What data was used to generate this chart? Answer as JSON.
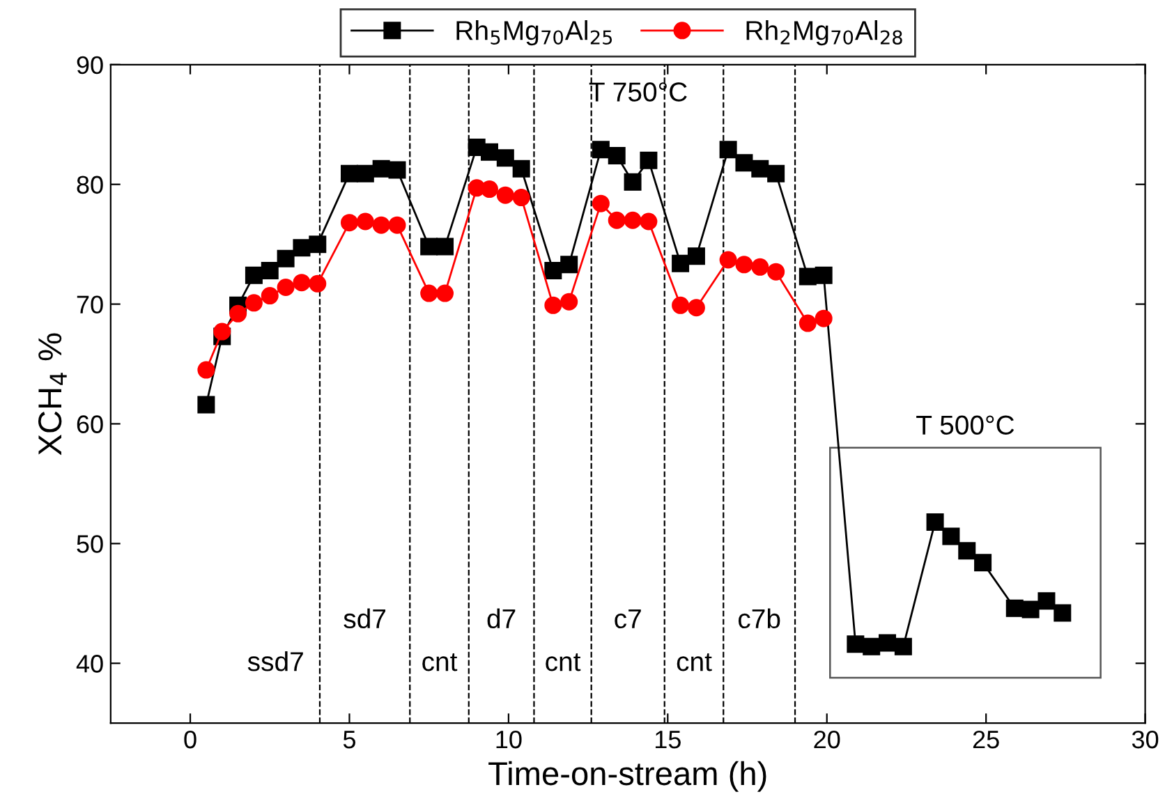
{
  "chart_data": {
    "type": "line",
    "xlabel": "Time-on-stream (h)",
    "ylabel": "XCH$_{4}$ %",
    "xlim": [
      -2.5,
      30
    ],
    "xticks": [
      0,
      5,
      10,
      15,
      20,
      25,
      30
    ],
    "ylim": [
      35,
      90
    ],
    "yticks": [
      40,
      50,
      60,
      70,
      80,
      90
    ],
    "grid": false,
    "legend": "top",
    "line_style": "solid",
    "series": [
      {
        "name": "Rh$_{5}$Mg$_{70}$Al$_{25}$",
        "color": "#000000",
        "marker": "square",
        "x": [
          0.5,
          1,
          1.5,
          2,
          2.5,
          3,
          3.5,
          4,
          5,
          5.5,
          6,
          6.5,
          7.5,
          8,
          9,
          9.4,
          9.9,
          10.4,
          11.4,
          11.9,
          12.9,
          13.4,
          13.9,
          14.4,
          15.4,
          15.9,
          16.9,
          17.4,
          17.9,
          18.4,
          19.4,
          19.9,
          20.9,
          21.4,
          21.9,
          22.4,
          23.4,
          23.9,
          24.4,
          24.9,
          25.9,
          26.4,
          26.9,
          27.4
        ],
        "values": [
          61.6,
          67.3,
          69.9,
          72.4,
          72.8,
          73.8,
          74.7,
          75.0,
          80.9,
          80.9,
          81.3,
          81.2,
          74.8,
          74.8,
          83.1,
          82.7,
          82.2,
          81.3,
          72.8,
          73.3,
          82.9,
          82.4,
          80.2,
          82.0,
          73.4,
          74.0,
          82.9,
          81.8,
          81.3,
          80.9,
          72.3,
          72.4,
          41.6,
          41.4,
          41.7,
          41.4,
          51.8,
          50.6,
          49.4,
          48.4,
          44.6,
          44.5,
          45.2,
          44.2
        ]
      },
      {
        "name": "Rh$_{2}$Mg$_{70}$Al$_{28}$",
        "color": "#ff0000",
        "marker": "circle",
        "x": [
          0.5,
          1,
          1.5,
          2,
          2.5,
          3,
          3.5,
          4,
          5,
          5.5,
          6,
          6.5,
          7.5,
          8,
          9,
          9.4,
          9.9,
          10.4,
          11.4,
          11.9,
          12.9,
          13.4,
          13.9,
          14.4,
          15.4,
          15.9,
          16.9,
          17.4,
          17.9,
          18.4,
          19.4,
          19.9
        ],
        "values": [
          64.5,
          67.7,
          69.2,
          70.1,
          70.7,
          71.4,
          71.8,
          71.7,
          76.8,
          76.9,
          76.6,
          76.6,
          70.9,
          70.9,
          79.7,
          79.6,
          79.1,
          78.9,
          69.9,
          70.2,
          78.4,
          77.0,
          77.0,
          76.9,
          69.9,
          69.7,
          73.7,
          73.3,
          73.1,
          72.7,
          68.4,
          68.8
        ]
      }
    ],
    "ref_lines": [
      {
        "axis": "x",
        "value": 4.07,
        "line_style": "dashed",
        "color": "#000000"
      },
      {
        "axis": "x",
        "value": 6.9,
        "line_style": "dashed",
        "color": "#000000"
      },
      {
        "axis": "x",
        "value": 8.75,
        "line_style": "dashed",
        "color": "#000000"
      },
      {
        "axis": "x",
        "value": 10.8,
        "line_style": "dashed",
        "color": "#000000"
      },
      {
        "axis": "x",
        "value": 12.6,
        "line_style": "dashed",
        "color": "#000000"
      },
      {
        "axis": "x",
        "value": 14.9,
        "line_style": "dashed",
        "color": "#000000"
      },
      {
        "axis": "x",
        "value": 16.75,
        "line_style": "dashed",
        "color": "#000000"
      },
      {
        "axis": "x",
        "value": 19.0,
        "line_style": "dashed",
        "color": "#000000"
      }
    ],
    "annotations": [
      "ssd7",
      "sd7",
      "cnt",
      "d7",
      "cnt",
      "c7",
      "cnt",
      "c7b",
      "T 750°C",
      "T 500°C"
    ]
  }
}
